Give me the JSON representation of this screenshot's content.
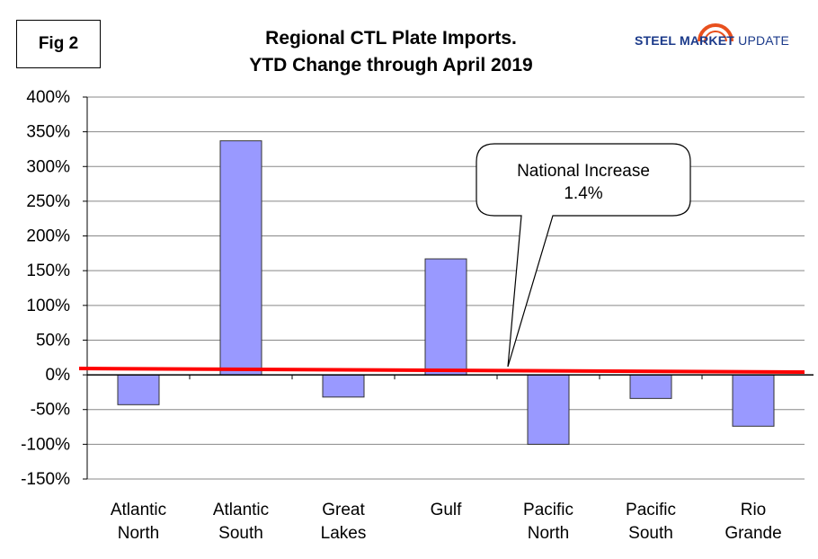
{
  "figure_label": "Fig 2",
  "title_line1": "Regional CTL Plate Imports.",
  "title_line2": "YTD Change through April 2019",
  "logo": {
    "bold": "STEEL MARKET",
    "light": " UPDATE",
    "accent_color": "#e8501e",
    "brand_color": "#1b3a8a"
  },
  "callout": {
    "line1": "National Increase",
    "line2": "1.4%"
  },
  "colors": {
    "bar_fill": "#9999ff",
    "bar_stroke": "#333333",
    "trend_line": "#ff0000",
    "grid": "#888888"
  },
  "chart_data": {
    "type": "bar",
    "title": "Regional CTL Plate Imports. YTD Change through April 2019",
    "categories": [
      [
        "Atlantic",
        "North"
      ],
      [
        "Atlantic",
        "South"
      ],
      [
        "Great",
        "Lakes"
      ],
      [
        "Gulf"
      ],
      [
        "Pacific",
        "North"
      ],
      [
        "Pacific",
        "South"
      ],
      [
        "Rio",
        "Grande"
      ]
    ],
    "values": [
      -43,
      337,
      -32,
      167,
      -100,
      -34,
      -74
    ],
    "ylim": [
      -150,
      400
    ],
    "ytick_step": 50,
    "ytick_labels": [
      "400%",
      "350%",
      "300%",
      "250%",
      "200%",
      "150%",
      "100%",
      "50%",
      "0%",
      "-50%",
      "-100%",
      "-150%"
    ],
    "xlabel": "",
    "ylabel": "",
    "grid": true,
    "national_increase_percent": 1.4
  }
}
